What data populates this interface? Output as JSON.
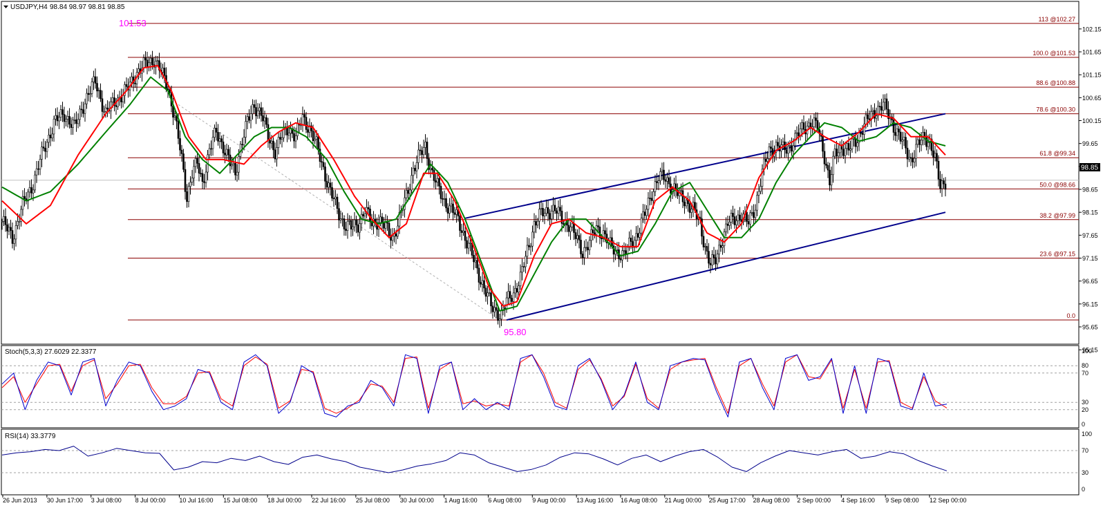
{
  "header": {
    "symbol": "USDJPY,H4",
    "ohlc": "98.84 98.97 98.81 98.85"
  },
  "annotations": {
    "high_label": "101.53",
    "low_label": "95.80",
    "current_price": "98.85"
  },
  "colors": {
    "candle": "#000000",
    "fib": "#8b0000",
    "ma_fast": "#ff0000",
    "ma_slow": "#008000",
    "channel": "#00008b",
    "stoch_main": "#0000cd",
    "stoch_signal": "#ff0000",
    "rsi": "#00008b",
    "label_magenta": "#ff00ff"
  },
  "chart_data": [
    {
      "type": "candlestick",
      "symbol": "USDJPY",
      "timeframe": "H4",
      "ylim": [
        95.15,
        102.4
      ],
      "y_ticks": [
        "102.15",
        "101.65",
        "101.15",
        "100.65",
        "100.15",
        "99.65",
        "99.15",
        "98.65",
        "98.15",
        "97.65",
        "97.15",
        "96.65",
        "96.15",
        "95.65",
        "95.15"
      ],
      "x_ticks": [
        "26 Jun 2013",
        "30 Jun 17:00",
        "3 Jul 08:00",
        "8 Jul 00:00",
        "10 Jul 16:00",
        "15 Jul 08:00",
        "18 Jul 00:00",
        "22 Jul 16:00",
        "25 Jul 08:00",
        "30 Jul 00:00",
        "1 Aug 16:00",
        "6 Aug 08:00",
        "9 Aug 00:00",
        "13 Aug 16:00",
        "16 Aug 08:00",
        "21 Aug 00:00",
        "25 Aug 17:00",
        "28 Aug 08:00",
        "2 Sep 00:00",
        "4 Sep 16:00",
        "9 Sep 08:00",
        "12 Sep 00:00"
      ],
      "fib_levels": [
        {
          "label": "113 @102.27",
          "value": 102.27
        },
        {
          "label": "100.0 @101.53",
          "value": 101.53
        },
        {
          "label": "88.6 @100.88",
          "value": 100.88
        },
        {
          "label": "78.6 @100.30",
          "value": 100.3
        },
        {
          "label": "61.8 @99.34",
          "value": 99.34
        },
        {
          "label": "50.0 @98.66",
          "value": 98.66
        },
        {
          "label": "38.2 @97.99",
          "value": 97.99
        },
        {
          "label": "23.6 @97.15",
          "value": 97.15
        },
        {
          "label": "0.0",
          "value": 95.8
        }
      ],
      "close_path": [
        [
          0,
          97.95
        ],
        [
          6,
          97.6
        ],
        [
          12,
          98.3
        ],
        [
          18,
          98.8
        ],
        [
          24,
          99.5
        ],
        [
          30,
          100.1
        ],
        [
          36,
          100.3
        ],
        [
          42,
          100.0
        ],
        [
          48,
          100.6
        ],
        [
          54,
          101.0
        ],
        [
          60,
          100.3
        ],
        [
          66,
          100.6
        ],
        [
          72,
          100.8
        ],
        [
          78,
          101.2
        ],
        [
          84,
          101.4
        ],
        [
          88,
          101.5
        ],
        [
          92,
          101.2
        ],
        [
          96,
          100.9
        ],
        [
          100,
          100.2
        ],
        [
          104,
          99.3
        ],
        [
          107,
          98.5
        ],
        [
          110,
          99.0
        ],
        [
          113,
          99.2
        ],
        [
          116,
          98.8
        ],
        [
          120,
          99.5
        ],
        [
          124,
          99.9
        ],
        [
          128,
          99.6
        ],
        [
          132,
          99.2
        ],
        [
          135,
          99.0
        ],
        [
          138,
          99.6
        ],
        [
          142,
          100.1
        ],
        [
          146,
          100.5
        ],
        [
          150,
          100.3
        ],
        [
          154,
          99.8
        ],
        [
          158,
          99.5
        ],
        [
          162,
          99.8
        ],
        [
          166,
          100.0
        ],
        [
          170,
          99.8
        ],
        [
          174,
          100.2
        ],
        [
          178,
          100.0
        ],
        [
          182,
          99.6
        ],
        [
          186,
          99.1
        ],
        [
          190,
          98.6
        ],
        [
          194,
          98.2
        ],
        [
          198,
          97.9
        ],
        [
          202,
          97.8
        ],
        [
          206,
          97.9
        ],
        [
          210,
          98.2
        ],
        [
          214,
          97.9
        ],
        [
          218,
          98.0
        ],
        [
          222,
          97.8
        ],
        [
          226,
          97.6
        ],
        [
          230,
          98.0
        ],
        [
          234,
          98.5
        ],
        [
          238,
          99.1
        ],
        [
          242,
          99.4
        ],
        [
          245,
          99.6
        ],
        [
          248,
          99.1
        ],
        [
          252,
          98.7
        ],
        [
          256,
          98.4
        ],
        [
          260,
          98.2
        ],
        [
          264,
          98.0
        ],
        [
          268,
          97.6
        ],
        [
          272,
          97.2
        ],
        [
          276,
          96.8
        ],
        [
          280,
          96.4
        ],
        [
          283,
          96.1
        ],
        [
          286,
          96.0
        ],
        [
          289,
          95.9
        ],
        [
          292,
          96.2
        ],
        [
          296,
          96.4
        ],
        [
          300,
          96.7
        ],
        [
          304,
          97.3
        ],
        [
          308,
          97.9
        ],
        [
          312,
          98.1
        ],
        [
          316,
          98.2
        ],
        [
          320,
          98.2
        ],
        [
          324,
          98.0
        ],
        [
          328,
          97.9
        ],
        [
          332,
          97.6
        ],
        [
          336,
          97.3
        ],
        [
          340,
          97.5
        ],
        [
          344,
          97.8
        ],
        [
          348,
          97.7
        ],
        [
          352,
          97.4
        ],
        [
          356,
          97.3
        ],
        [
          360,
          97.2
        ],
        [
          364,
          97.5
        ],
        [
          368,
          97.7
        ],
        [
          372,
          98.1
        ],
        [
          376,
          98.6
        ],
        [
          380,
          98.9
        ],
        [
          384,
          98.9
        ],
        [
          388,
          98.7
        ],
        [
          392,
          98.5
        ],
        [
          396,
          98.4
        ],
        [
          400,
          98.2
        ],
        [
          404,
          97.9
        ],
        [
          407,
          97.4
        ],
        [
          410,
          97.0
        ],
        [
          413,
          97.1
        ],
        [
          416,
          97.5
        ],
        [
          420,
          97.9
        ],
        [
          424,
          98.0
        ],
        [
          428,
          98.1
        ],
        [
          432,
          97.9
        ],
        [
          436,
          98.3
        ],
        [
          440,
          99.0
        ],
        [
          444,
          99.5
        ],
        [
          448,
          99.6
        ],
        [
          452,
          99.5
        ],
        [
          456,
          99.6
        ],
        [
          460,
          99.8
        ],
        [
          464,
          100.0
        ],
        [
          468,
          100.1
        ],
        [
          472,
          100.0
        ],
        [
          476,
          99.4
        ],
        [
          479,
          98.8
        ],
        [
          482,
          99.4
        ],
        [
          486,
          99.6
        ],
        [
          490,
          99.5
        ],
        [
          494,
          99.7
        ],
        [
          498,
          100.0
        ],
        [
          502,
          100.2
        ],
        [
          506,
          100.4
        ],
        [
          510,
          100.5
        ],
        [
          514,
          100.2
        ],
        [
          518,
          99.9
        ],
        [
          522,
          99.6
        ],
        [
          526,
          99.3
        ],
        [
          530,
          99.6
        ],
        [
          534,
          99.8
        ],
        [
          537,
          99.7
        ],
        [
          540,
          99.3
        ],
        [
          543,
          98.7
        ],
        [
          546,
          98.85
        ]
      ],
      "ma_fast": [
        [
          0,
          98.4
        ],
        [
          14,
          97.9
        ],
        [
          28,
          98.3
        ],
        [
          44,
          99.4
        ],
        [
          60,
          100.3
        ],
        [
          72,
          100.8
        ],
        [
          82,
          101.3
        ],
        [
          90,
          101.35
        ],
        [
          98,
          100.8
        ],
        [
          108,
          99.8
        ],
        [
          118,
          99.3
        ],
        [
          128,
          99.3
        ],
        [
          140,
          99.2
        ],
        [
          150,
          99.6
        ],
        [
          160,
          99.9
        ],
        [
          170,
          100.1
        ],
        [
          180,
          100.0
        ],
        [
          192,
          99.3
        ],
        [
          204,
          98.5
        ],
        [
          214,
          98.0
        ],
        [
          224,
          97.6
        ],
        [
          234,
          97.9
        ],
        [
          244,
          99.0
        ],
        [
          252,
          99.0
        ],
        [
          262,
          98.4
        ],
        [
          272,
          97.5
        ],
        [
          282,
          96.5
        ],
        [
          290,
          96.1
        ],
        [
          298,
          96.2
        ],
        [
          308,
          97.2
        ],
        [
          318,
          97.9
        ],
        [
          328,
          98.0
        ],
        [
          338,
          97.7
        ],
        [
          348,
          97.6
        ],
        [
          358,
          97.4
        ],
        [
          368,
          97.4
        ],
        [
          378,
          98.4
        ],
        [
          388,
          98.7
        ],
        [
          398,
          98.4
        ],
        [
          408,
          97.7
        ],
        [
          418,
          97.5
        ],
        [
          428,
          97.9
        ],
        [
          438,
          98.9
        ],
        [
          448,
          99.5
        ],
        [
          458,
          99.7
        ],
        [
          468,
          100.0
        ],
        [
          476,
          99.8
        ],
        [
          486,
          99.6
        ],
        [
          496,
          99.9
        ],
        [
          506,
          100.3
        ],
        [
          516,
          100.2
        ],
        [
          526,
          99.8
        ],
        [
          536,
          99.8
        ],
        [
          546,
          99.4
        ]
      ],
      "ma_slow": [
        [
          0,
          98.7
        ],
        [
          14,
          98.4
        ],
        [
          28,
          98.6
        ],
        [
          44,
          99.2
        ],
        [
          60,
          99.9
        ],
        [
          74,
          100.5
        ],
        [
          86,
          101.1
        ],
        [
          96,
          100.8
        ],
        [
          106,
          99.8
        ],
        [
          116,
          99.3
        ],
        [
          126,
          99.0
        ],
        [
          136,
          99.4
        ],
        [
          146,
          99.8
        ],
        [
          156,
          100.0
        ],
        [
          166,
          100.0
        ],
        [
          176,
          99.8
        ],
        [
          188,
          99.3
        ],
        [
          198,
          98.6
        ],
        [
          208,
          98.0
        ],
        [
          218,
          97.9
        ],
        [
          228,
          98.0
        ],
        [
          238,
          98.6
        ],
        [
          248,
          99.2
        ],
        [
          258,
          98.8
        ],
        [
          268,
          98.0
        ],
        [
          278,
          97.0
        ],
        [
          288,
          96.0
        ],
        [
          298,
          96.1
        ],
        [
          308,
          96.8
        ],
        [
          318,
          97.5
        ],
        [
          328,
          98.0
        ],
        [
          338,
          98.0
        ],
        [
          348,
          97.6
        ],
        [
          358,
          97.2
        ],
        [
          368,
          97.3
        ],
        [
          378,
          97.9
        ],
        [
          388,
          98.6
        ],
        [
          398,
          98.8
        ],
        [
          408,
          98.2
        ],
        [
          418,
          97.6
        ],
        [
          428,
          97.6
        ],
        [
          438,
          98.0
        ],
        [
          448,
          98.8
        ],
        [
          458,
          99.4
        ],
        [
          468,
          99.8
        ],
        [
          476,
          100.1
        ],
        [
          486,
          100.0
        ],
        [
          496,
          99.7
        ],
        [
          506,
          99.8
        ],
        [
          516,
          100.1
        ],
        [
          526,
          100.0
        ],
        [
          536,
          99.7
        ],
        [
          546,
          99.6
        ]
      ],
      "channel_lines": [
        {
          "from": [
            268,
            98.02
          ],
          "to": [
            546,
            100.3
          ]
        },
        {
          "from": [
            292,
            95.8
          ],
          "to": [
            546,
            98.15
          ]
        },
        {
          "from": [
            100,
            100.55
          ],
          "to": [
            286,
            95.85
          ]
        }
      ]
    },
    {
      "type": "line",
      "name": "Stoch(5,3,3) 27.6029 22.3377",
      "ylim": [
        0,
        100
      ],
      "levels": [
        20,
        30,
        70,
        80
      ],
      "y_ticks": [
        "100",
        "80",
        "70",
        "30",
        "20",
        "0"
      ],
      "series": [
        {
          "name": "main",
          "values": [
            55,
            70,
            20,
            60,
            85,
            80,
            40,
            85,
            90,
            25,
            60,
            85,
            80,
            45,
            20,
            25,
            35,
            75,
            70,
            30,
            20,
            85,
            95,
            80,
            15,
            30,
            80,
            70,
            15,
            10,
            25,
            30,
            60,
            50,
            25,
            95,
            90,
            15,
            80,
            85,
            20,
            35,
            20,
            30,
            20,
            90,
            95,
            65,
            25,
            20,
            80,
            90,
            60,
            20,
            40,
            85,
            30,
            20,
            80,
            85,
            90,
            88,
            45,
            10,
            85,
            90,
            50,
            20,
            90,
            95,
            60,
            65,
            90,
            15,
            80,
            15,
            90,
            85,
            25,
            20,
            70,
            25,
            27.6
          ]
        },
        {
          "name": "signal",
          "values": [
            50,
            65,
            30,
            55,
            80,
            82,
            45,
            80,
            88,
            35,
            55,
            80,
            82,
            50,
            28,
            28,
            38,
            70,
            72,
            35,
            25,
            80,
            92,
            82,
            22,
            32,
            75,
            72,
            22,
            15,
            22,
            33,
            55,
            52,
            30,
            90,
            92,
            22,
            75,
            85,
            28,
            32,
            25,
            28,
            25,
            85,
            95,
            70,
            30,
            22,
            75,
            88,
            62,
            25,
            38,
            82,
            35,
            22,
            75,
            85,
            88,
            90,
            50,
            15,
            80,
            90,
            55,
            25,
            85,
            95,
            65,
            62,
            88,
            22,
            75,
            22,
            85,
            87,
            30,
            22,
            65,
            32,
            22.3
          ]
        }
      ]
    },
    {
      "type": "line",
      "name": "RSI(14) 33.3779",
      "ylim": [
        0,
        100
      ],
      "levels": [
        30,
        70
      ],
      "y_ticks": [
        "100",
        "70",
        "30",
        "0"
      ],
      "series": [
        {
          "name": "RSI",
          "values": [
            62,
            66,
            68,
            72,
            70,
            78,
            60,
            66,
            74,
            70,
            66,
            65,
            35,
            40,
            50,
            48,
            56,
            52,
            60,
            50,
            45,
            58,
            62,
            55,
            50,
            40,
            35,
            30,
            35,
            42,
            46,
            52,
            66,
            62,
            48,
            40,
            32,
            36,
            44,
            58,
            66,
            64,
            55,
            44,
            56,
            62,
            50,
            60,
            68,
            72,
            58,
            40,
            32,
            48,
            60,
            70,
            66,
            62,
            68,
            72,
            56,
            60,
            68,
            64,
            52,
            42,
            33.4
          ]
        }
      ]
    }
  ]
}
